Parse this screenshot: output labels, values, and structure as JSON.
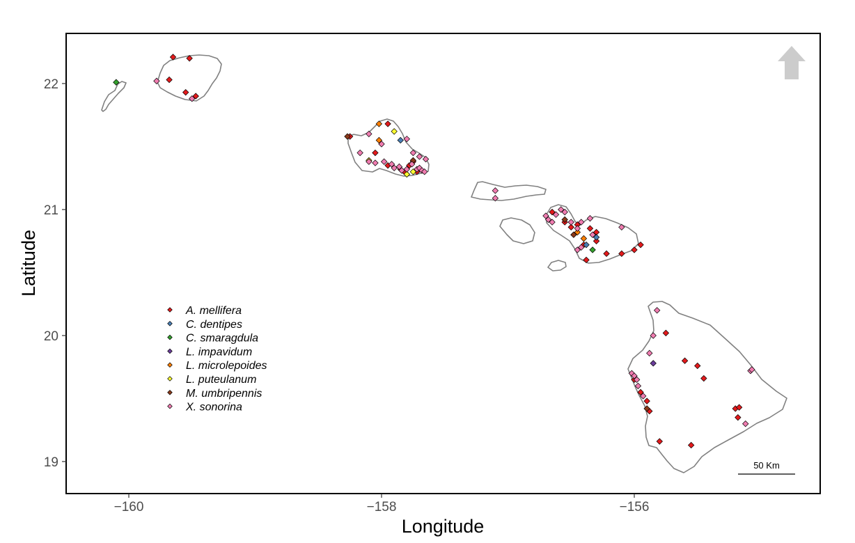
{
  "chart_data": {
    "type": "scatter",
    "title": "",
    "xlabel": "Longitude",
    "ylabel": "Latitude",
    "xlim": [
      -160.55,
      -154.7
    ],
    "ylim": [
      18.75,
      22.4
    ],
    "xticks": [
      -160,
      -158,
      -156
    ],
    "xtick_labels": [
      "−160",
      "−158",
      "−156"
    ],
    "yticks": [
      19,
      20,
      21,
      22
    ],
    "ytick_labels": [
      "19",
      "20",
      "21",
      "22"
    ],
    "grid": false,
    "legend_position": "bottom-left",
    "scale_bar_label": "50 Km",
    "north_arrow": true,
    "series": [
      {
        "name": "A. mellifera",
        "color": "#e31a1c",
        "points": [
          [
            -159.65,
            22.21
          ],
          [
            -159.52,
            22.2
          ],
          [
            -159.68,
            22.03
          ],
          [
            -159.55,
            21.93
          ],
          [
            -159.47,
            21.9
          ],
          [
            -158.25,
            21.58
          ],
          [
            -158.05,
            21.45
          ],
          [
            -157.95,
            21.68
          ],
          [
            -157.95,
            21.35
          ],
          [
            -157.85,
            21.32
          ],
          [
            -157.8,
            21.28
          ],
          [
            -157.75,
            21.38
          ],
          [
            -157.72,
            21.3
          ],
          [
            -157.78,
            21.35
          ],
          [
            -157.82,
            21.3
          ],
          [
            -156.65,
            20.98
          ],
          [
            -156.55,
            20.9
          ],
          [
            -156.45,
            20.88
          ],
          [
            -156.35,
            20.85
          ],
          [
            -156.4,
            20.72
          ],
          [
            -156.3,
            20.75
          ],
          [
            -156.38,
            20.6
          ],
          [
            -156.22,
            20.65
          ],
          [
            -156.1,
            20.65
          ],
          [
            -156.0,
            20.68
          ],
          [
            -155.95,
            20.72
          ],
          [
            -156.3,
            20.82
          ],
          [
            -156.5,
            20.86
          ],
          [
            -155.75,
            20.02
          ],
          [
            -155.6,
            19.8
          ],
          [
            -155.5,
            19.76
          ],
          [
            -155.45,
            19.66
          ],
          [
            -156.0,
            19.65
          ],
          [
            -155.95,
            19.55
          ],
          [
            -155.9,
            19.48
          ],
          [
            -155.88,
            19.4
          ],
          [
            -155.2,
            19.42
          ],
          [
            -155.17,
            19.43
          ],
          [
            -155.18,
            19.35
          ],
          [
            -155.8,
            19.16
          ],
          [
            -155.55,
            19.13
          ]
        ]
      },
      {
        "name": "C. dentipes",
        "color": "#4a7fb5",
        "points": [
          [
            -157.85,
            21.55
          ],
          [
            -156.3,
            20.78
          ],
          [
            -156.38,
            20.72
          ]
        ]
      },
      {
        "name": "C. smaragdula",
        "color": "#33a02c",
        "points": [
          [
            -160.1,
            22.01
          ],
          [
            -156.33,
            20.68
          ]
        ]
      },
      {
        "name": "L. impavidum",
        "color": "#6a3d9a",
        "points": [
          [
            -155.85,
            19.78
          ]
        ]
      },
      {
        "name": "L. microlepoides",
        "color": "#ff7f00",
        "points": [
          [
            -158.02,
            21.68
          ],
          [
            -158.02,
            21.55
          ],
          [
            -156.45,
            20.82
          ],
          [
            -156.4,
            20.77
          ]
        ]
      },
      {
        "name": "L. puteulanum",
        "color": "#ffff33",
        "points": [
          [
            -157.9,
            21.62
          ],
          [
            -157.8,
            21.28
          ],
          [
            -158.1,
            21.39
          ],
          [
            -157.75,
            21.3
          ]
        ]
      },
      {
        "name": "M. umbripennis",
        "color": "#8b3a1a",
        "points": [
          [
            -158.27,
            21.58
          ],
          [
            -157.75,
            21.39
          ],
          [
            -156.48,
            20.8
          ],
          [
            -156.55,
            20.92
          ],
          [
            -155.9,
            19.42
          ]
        ]
      },
      {
        "name": "X. sonorina",
        "color": "#f07cb0",
        "points": [
          [
            -159.78,
            22.02
          ],
          [
            -159.5,
            21.88
          ],
          [
            -158.17,
            21.45
          ],
          [
            -158.1,
            21.6
          ],
          [
            -158.0,
            21.52
          ],
          [
            -158.1,
            21.38
          ],
          [
            -158.05,
            21.37
          ],
          [
            -157.98,
            21.38
          ],
          [
            -157.92,
            21.36
          ],
          [
            -157.9,
            21.33
          ],
          [
            -157.86,
            21.34
          ],
          [
            -157.84,
            21.31
          ],
          [
            -157.8,
            21.32
          ],
          [
            -157.76,
            21.36
          ],
          [
            -157.72,
            21.32
          ],
          [
            -157.7,
            21.33
          ],
          [
            -157.68,
            21.31
          ],
          [
            -157.66,
            21.3
          ],
          [
            -157.8,
            21.56
          ],
          [
            -157.75,
            21.45
          ],
          [
            -157.7,
            21.42
          ],
          [
            -157.65,
            21.4
          ],
          [
            -157.1,
            21.15
          ],
          [
            -157.1,
            21.09
          ],
          [
            -156.7,
            20.95
          ],
          [
            -156.68,
            20.92
          ],
          [
            -156.65,
            20.9
          ],
          [
            -156.62,
            20.96
          ],
          [
            -156.58,
            21.0
          ],
          [
            -156.55,
            20.98
          ],
          [
            -156.5,
            20.9
          ],
          [
            -156.45,
            20.85
          ],
          [
            -156.42,
            20.9
          ],
          [
            -156.35,
            20.93
          ],
          [
            -156.33,
            20.8
          ],
          [
            -156.42,
            20.7
          ],
          [
            -156.45,
            20.68
          ],
          [
            -156.1,
            20.86
          ],
          [
            -155.82,
            20.2
          ],
          [
            -155.85,
            20.0
          ],
          [
            -155.88,
            19.86
          ],
          [
            -156.02,
            19.7
          ],
          [
            -156.0,
            19.68
          ],
          [
            -155.98,
            19.65
          ],
          [
            -155.97,
            19.6
          ],
          [
            -155.93,
            19.52
          ],
          [
            -155.08,
            19.72
          ],
          [
            -155.07,
            19.73
          ],
          [
            -155.12,
            19.3
          ]
        ]
      }
    ]
  }
}
